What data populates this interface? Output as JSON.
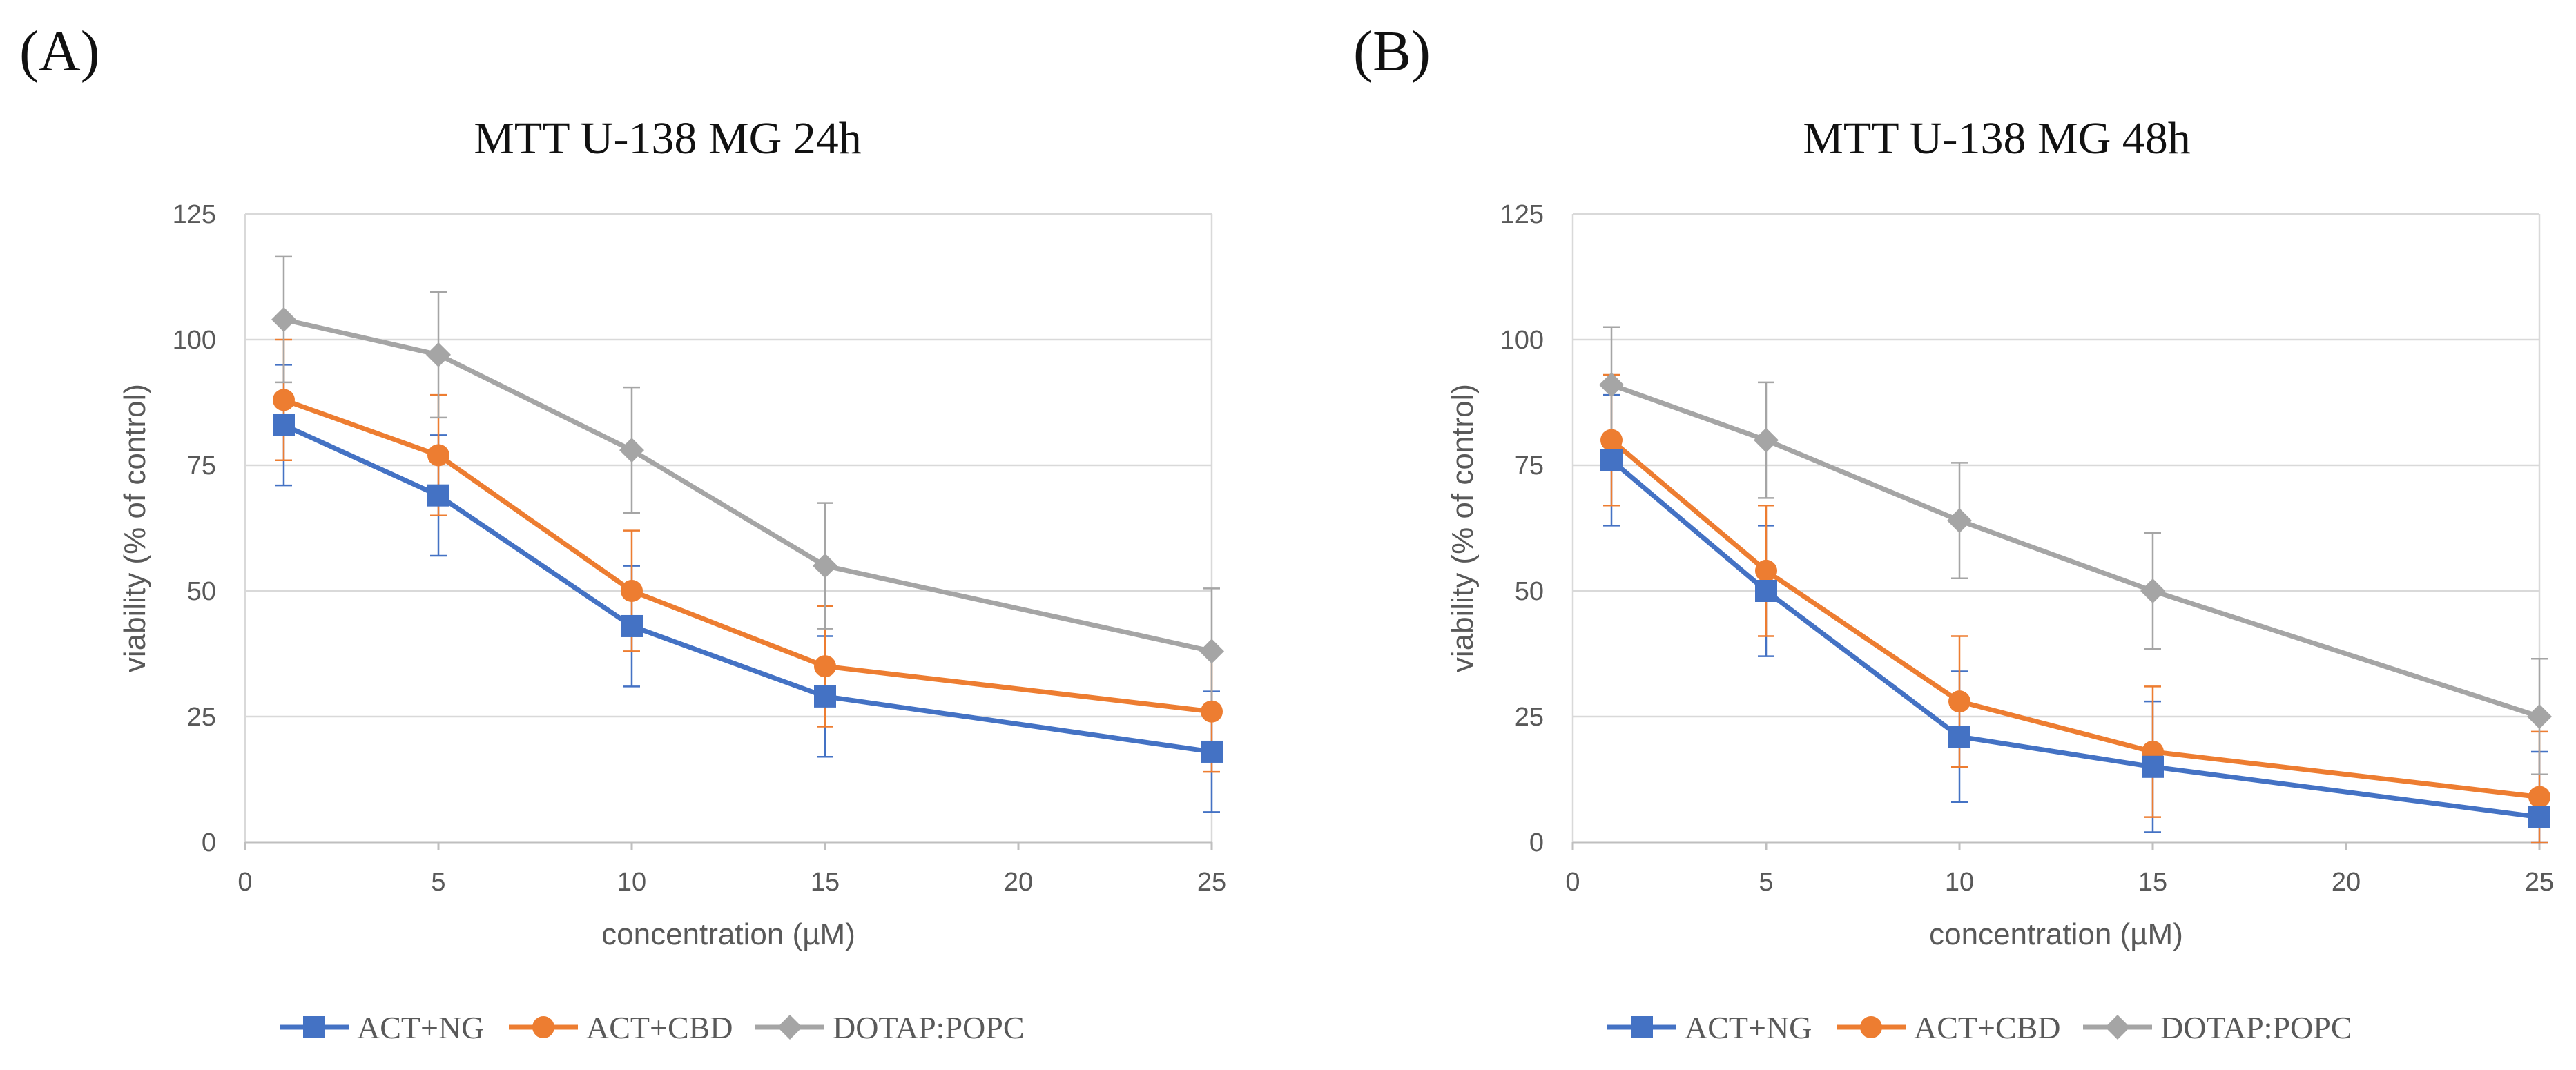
{
  "figure": {
    "panel_labels": [
      "(A)",
      "(B)"
    ]
  },
  "chart_data": [
    {
      "type": "line",
      "title": "MTT U-138 MG 24h",
      "xlabel": "concentration (µM)",
      "ylabel": "viability (% of control)",
      "xlim": [
        0,
        25
      ],
      "ylim": [
        0,
        125
      ],
      "xticks": [
        0,
        5,
        10,
        15,
        20,
        25
      ],
      "yticks": [
        0,
        25,
        50,
        75,
        100,
        125
      ],
      "grid": true,
      "legend": "bottom",
      "x": [
        1,
        5,
        10,
        15,
        25
      ],
      "series": [
        {
          "name": "ACT+NG",
          "color": "#4472C4",
          "marker": "square",
          "values": [
            83,
            69,
            43,
            29,
            18
          ],
          "errors": [
            12,
            12,
            12,
            12,
            12
          ]
        },
        {
          "name": "ACT+CBD",
          "color": "#ED7D31",
          "marker": "circle",
          "values": [
            88,
            77,
            50,
            35,
            26
          ],
          "errors": [
            12,
            12,
            12,
            12,
            12
          ]
        },
        {
          "name": "DOTAP:POPC",
          "color": "#A5A5A5",
          "marker": "diamond",
          "values": [
            104,
            97,
            78,
            55,
            38
          ],
          "errors": [
            12.5,
            12.5,
            12.5,
            12.5,
            12.5
          ]
        }
      ]
    },
    {
      "type": "line",
      "title": "MTT U-138 MG 48h",
      "xlabel": "concentration (µM)",
      "ylabel": "viability (% of control)",
      "xlim": [
        0,
        25
      ],
      "ylim": [
        0,
        125
      ],
      "xticks": [
        0,
        5,
        10,
        15,
        20,
        25
      ],
      "yticks": [
        0,
        25,
        50,
        75,
        100,
        125
      ],
      "grid": true,
      "legend": "bottom",
      "x": [
        1,
        5,
        10,
        15,
        25
      ],
      "series": [
        {
          "name": "ACT+NG",
          "color": "#4472C4",
          "marker": "square",
          "values": [
            76,
            50,
            21,
            15,
            5
          ],
          "errors": [
            13,
            13,
            13,
            13,
            13
          ]
        },
        {
          "name": "ACT+CBD",
          "color": "#ED7D31",
          "marker": "circle",
          "values": [
            80,
            54,
            28,
            18,
            9
          ],
          "errors": [
            13,
            13,
            13,
            13,
            13
          ]
        },
        {
          "name": "DOTAP:POPC",
          "color": "#A5A5A5",
          "marker": "diamond",
          "values": [
            91,
            80,
            64,
            50,
            25
          ],
          "errors": [
            11.5,
            11.5,
            11.5,
            11.5,
            11.5
          ]
        }
      ]
    }
  ]
}
